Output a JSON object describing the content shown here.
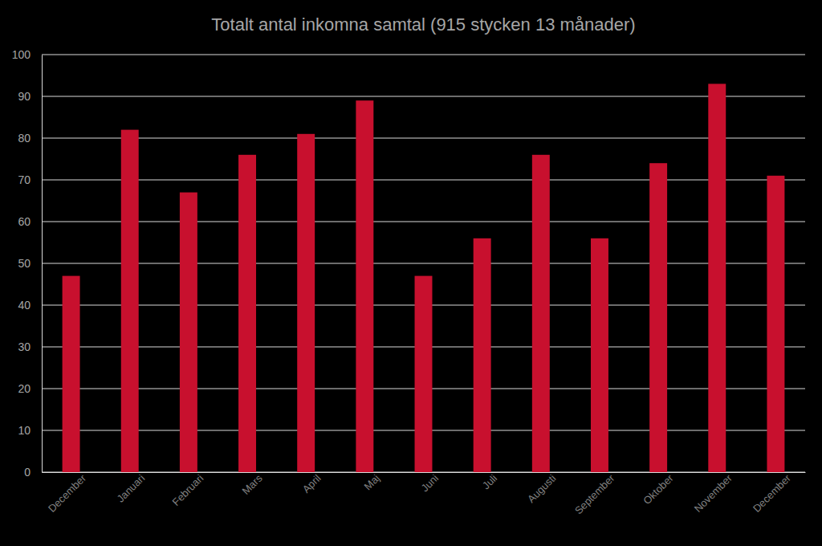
{
  "chart_data": {
    "type": "bar",
    "title": "Totalt antal inkomna samtal (915 stycken 13 månader)",
    "categories": [
      "December",
      "Januari",
      "Februari",
      "Mars",
      "April",
      "Maj",
      "Juni",
      "Juli",
      "Augusti",
      "September",
      "Oktober",
      "November",
      "December"
    ],
    "values": [
      47,
      82,
      67,
      76,
      81,
      89,
      47,
      56,
      76,
      56,
      74,
      93,
      71
    ],
    "color": "#c8102e",
    "ylim": [
      0,
      100
    ],
    "yticks": [
      0,
      10,
      20,
      30,
      40,
      50,
      60,
      70,
      80,
      90,
      100
    ],
    "grid": true
  }
}
